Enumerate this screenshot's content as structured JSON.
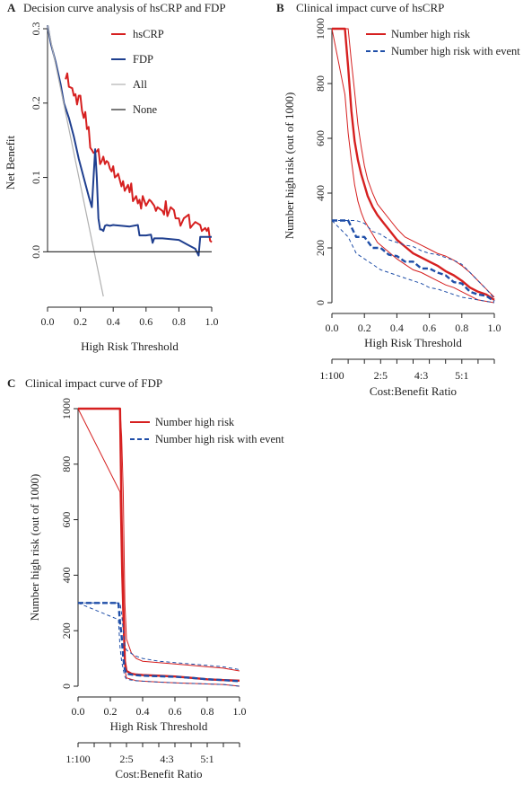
{
  "chart_data": [
    {
      "panel": "A",
      "type": "line",
      "title": "Decision curve analysis of hsCRP and FDP",
      "xlabel": "High Risk Threshold",
      "ylabel": "Net Benefit",
      "xlim": [
        0,
        1
      ],
      "ylim": [
        -0.06,
        0.3
      ],
      "xticks": [
        "0.0",
        "0.2",
        "0.4",
        "0.6",
        "0.8",
        "1.0"
      ],
      "yticks": [
        "0.0",
        "0.1",
        "0.2",
        "0.3"
      ],
      "legend": {
        "placement": "top-right"
      },
      "series": [
        {
          "name": "hsCRP",
          "color": "#d62020",
          "x": [
            0.11,
            0.12,
            0.13,
            0.15,
            0.16,
            0.17,
            0.18,
            0.19,
            0.2,
            0.21,
            0.22,
            0.23,
            0.24,
            0.25,
            0.26,
            0.27,
            0.28,
            0.3,
            0.31,
            0.32,
            0.33,
            0.34,
            0.35,
            0.36,
            0.37,
            0.38,
            0.39,
            0.4,
            0.41,
            0.42,
            0.43,
            0.45,
            0.46,
            0.47,
            0.49,
            0.5,
            0.51,
            0.52,
            0.54,
            0.55,
            0.56,
            0.57,
            0.58,
            0.6,
            0.62,
            0.63,
            0.65,
            0.66,
            0.67,
            0.7,
            0.71,
            0.72,
            0.73,
            0.75,
            0.77,
            0.78,
            0.8,
            0.81,
            0.83,
            0.86,
            0.87,
            0.88,
            0.9,
            0.93,
            0.94,
            0.96,
            0.97,
            0.98,
            0.99,
            1.0
          ],
          "y": [
            0.232,
            0.24,
            0.222,
            0.22,
            0.21,
            0.212,
            0.198,
            0.21,
            0.21,
            0.19,
            0.18,
            0.188,
            0.165,
            0.168,
            0.14,
            0.137,
            0.133,
            0.135,
            0.138,
            0.118,
            0.122,
            0.128,
            0.118,
            0.122,
            0.12,
            0.112,
            0.108,
            0.115,
            0.1,
            0.102,
            0.105,
            0.088,
            0.095,
            0.082,
            0.09,
            0.08,
            0.092,
            0.068,
            0.075,
            0.065,
            0.07,
            0.058,
            0.075,
            0.062,
            0.07,
            0.068,
            0.062,
            0.055,
            0.06,
            0.055,
            0.05,
            0.068,
            0.048,
            0.06,
            0.056,
            0.045,
            0.045,
            0.035,
            0.045,
            0.05,
            0.032,
            0.035,
            0.04,
            0.036,
            0.028,
            0.032,
            0.028,
            0.032,
            0.015,
            0.013
          ]
        },
        {
          "name": "FDP",
          "color": "#1f3f8f",
          "x": [
            0.0,
            0.02,
            0.05,
            0.08,
            0.1,
            0.13,
            0.16,
            0.19,
            0.22,
            0.25,
            0.27,
            0.29,
            0.3,
            0.31,
            0.32,
            0.33,
            0.34,
            0.35,
            0.36,
            0.38,
            0.4,
            0.45,
            0.5,
            0.55,
            0.56,
            0.6,
            0.63,
            0.64,
            0.65,
            0.7,
            0.75,
            0.8,
            0.85,
            0.9,
            0.92,
            0.93,
            0.96,
            1.0
          ],
          "y": [
            0.305,
            0.28,
            0.255,
            0.225,
            0.2,
            0.18,
            0.155,
            0.125,
            0.1,
            0.075,
            0.06,
            0.138,
            0.1,
            0.045,
            0.03,
            0.03,
            0.028,
            0.035,
            0.036,
            0.035,
            0.036,
            0.035,
            0.034,
            0.036,
            0.022,
            0.022,
            0.023,
            0.012,
            0.018,
            0.018,
            0.017,
            0.016,
            0.01,
            0.004,
            -0.005,
            0.02,
            0.02,
            0.02
          ]
        },
        {
          "name": "All",
          "color": "#b0b0b0",
          "x": [
            0.0,
            0.34
          ],
          "y": [
            0.305,
            -0.06
          ]
        },
        {
          "name": "None",
          "color": "#222222",
          "x": [
            0.0,
            1.0
          ],
          "y": [
            0.0,
            0.0
          ]
        }
      ]
    },
    {
      "panel": "B",
      "type": "line",
      "title": "Clinical impact curve of hsCRP",
      "xlabel": "High Risk Threshold",
      "ylabel": "Number high risk (out of 1000)",
      "xlim": [
        0,
        1
      ],
      "ylim": [
        0,
        1000
      ],
      "xticks": [
        "0.0",
        "0.2",
        "0.4",
        "0.6",
        "0.8",
        "1.0"
      ],
      "yticks": [
        "0",
        "200",
        "400",
        "600",
        "800",
        "1000"
      ],
      "x2label": "Cost:Benefit Ratio",
      "x2ticks": [
        "1:100",
        "2:5",
        "4:3",
        "5:1"
      ],
      "legend": {
        "placement": "top-right"
      },
      "series": [
        {
          "name": "Number high risk",
          "color": "#d62020",
          "style": "solid-with-ci",
          "x": [
            0.0,
            0.08,
            0.1,
            0.12,
            0.14,
            0.16,
            0.18,
            0.2,
            0.22,
            0.25,
            0.28,
            0.32,
            0.36,
            0.4,
            0.45,
            0.5,
            0.55,
            0.6,
            0.65,
            0.7,
            0.75,
            0.8,
            0.85,
            0.9,
            0.95,
            1.0
          ],
          "y": [
            1000,
            1000,
            860,
            700,
            590,
            520,
            470,
            430,
            390,
            350,
            320,
            290,
            260,
            230,
            205,
            180,
            165,
            150,
            135,
            115,
            100,
            80,
            55,
            40,
            30,
            10
          ],
          "upper": [
            1000,
            1000,
            1000,
            880,
            770,
            650,
            570,
            500,
            450,
            400,
            360,
            330,
            300,
            270,
            240,
            225,
            210,
            195,
            180,
            170,
            155,
            135,
            110,
            80,
            50,
            20
          ],
          "lower": [
            1000,
            760,
            620,
            520,
            430,
            370,
            330,
            300,
            280,
            250,
            220,
            200,
            180,
            160,
            140,
            120,
            110,
            95,
            80,
            65,
            55,
            40,
            25,
            10,
            5,
            0
          ]
        },
        {
          "name": "Number high risk with event",
          "color": "#1f4ea8",
          "style": "dashed-with-ci",
          "x": [
            0.0,
            0.1,
            0.15,
            0.2,
            0.25,
            0.3,
            0.35,
            0.4,
            0.45,
            0.5,
            0.55,
            0.6,
            0.65,
            0.7,
            0.75,
            0.8,
            0.85,
            0.9,
            0.95,
            1.0
          ],
          "y": [
            300,
            300,
            240,
            240,
            200,
            200,
            175,
            170,
            150,
            150,
            125,
            125,
            110,
            100,
            75,
            70,
            40,
            30,
            25,
            5
          ],
          "upper": [
            300,
            300,
            300,
            290,
            260,
            250,
            230,
            220,
            210,
            205,
            190,
            180,
            175,
            165,
            155,
            140,
            110,
            80,
            50,
            15
          ],
          "lower": [
            300,
            240,
            180,
            160,
            140,
            120,
            110,
            100,
            90,
            80,
            70,
            55,
            50,
            40,
            30,
            20,
            15,
            10,
            5,
            0
          ]
        }
      ]
    },
    {
      "panel": "C",
      "type": "line",
      "title": "Clinical impact curve of FDP",
      "xlabel": "High Risk Threshold",
      "ylabel": "Number high risk (out of 1000)",
      "xlim": [
        0,
        1
      ],
      "ylim": [
        0,
        1000
      ],
      "xticks": [
        "0.0",
        "0.2",
        "0.4",
        "0.6",
        "0.8",
        "1.0"
      ],
      "yticks": [
        "0",
        "200",
        "400",
        "600",
        "800",
        "1000"
      ],
      "x2label": "Cost:Benefit Ratio",
      "x2ticks": [
        "1:100",
        "2:5",
        "4:3",
        "5:1"
      ],
      "legend": {
        "placement": "top-right"
      },
      "series": [
        {
          "name": "Number high risk",
          "color": "#d62020",
          "style": "solid-with-ci",
          "x": [
            0.0,
            0.26,
            0.27,
            0.28,
            0.29,
            0.3,
            0.33,
            0.36,
            0.4,
            0.5,
            0.6,
            0.7,
            0.8,
            0.9,
            1.0
          ],
          "y": [
            1000,
            1000,
            600,
            300,
            90,
            55,
            45,
            42,
            40,
            38,
            35,
            30,
            25,
            22,
            20
          ],
          "upper": [
            1000,
            1000,
            900,
            700,
            300,
            170,
            120,
            100,
            90,
            85,
            80,
            75,
            70,
            65,
            55
          ],
          "lower": [
            1000,
            700,
            400,
            200,
            60,
            30,
            25,
            20,
            18,
            15,
            12,
            10,
            8,
            6,
            0
          ]
        },
        {
          "name": "Number high risk with event",
          "color": "#1f4ea8",
          "style": "dashed-with-ci",
          "x": [
            0.0,
            0.25,
            0.26,
            0.27,
            0.28,
            0.29,
            0.3,
            0.35,
            0.4,
            0.5,
            0.6,
            0.7,
            0.8,
            0.9,
            1.0
          ],
          "y": [
            300,
            300,
            230,
            180,
            100,
            60,
            45,
            40,
            38,
            36,
            34,
            30,
            25,
            22,
            18
          ],
          "upper": [
            300,
            300,
            300,
            260,
            200,
            150,
            130,
            110,
            100,
            90,
            85,
            80,
            75,
            70,
            60
          ],
          "lower": [
            300,
            240,
            140,
            90,
            60,
            35,
            25,
            20,
            18,
            15,
            12,
            10,
            8,
            6,
            0
          ]
        }
      ]
    }
  ],
  "panel_labels": [
    "A",
    "B",
    "C"
  ]
}
